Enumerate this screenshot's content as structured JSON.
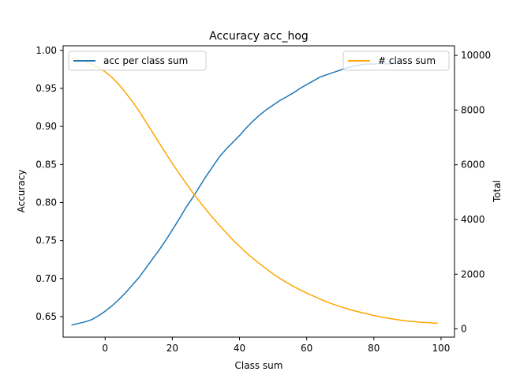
{
  "chart_data": {
    "type": "line",
    "title": "Accuracy acc_hog",
    "xlabel": "Class sum",
    "ylabel": "Accuracy",
    "y2label": "Total",
    "xlim": [
      -12.5,
      104
    ],
    "ylim": [
      0.623,
      1.006
    ],
    "y2lim": [
      -300,
      10350
    ],
    "x_ticks": [
      0,
      20,
      40,
      60,
      80,
      100
    ],
    "y_ticks": [
      0.65,
      0.7,
      0.75,
      0.8,
      0.85,
      0.9,
      0.95,
      1.0
    ],
    "y2_ticks": [
      0,
      2000,
      4000,
      6000,
      8000,
      10000
    ],
    "grid": false,
    "series": [
      {
        "name": "acc per class sum",
        "axis": "left",
        "color": "#1f77b4",
        "legend_position": "upper-left",
        "x": [
          -10,
          -8,
          -6,
          -4,
          -2,
          0,
          2,
          4,
          6,
          8,
          10,
          12,
          14,
          16,
          18,
          20,
          22,
          24,
          26,
          28,
          30,
          32,
          34,
          36,
          38,
          40,
          42,
          44,
          46,
          48,
          50,
          52,
          54,
          56,
          58,
          60,
          62,
          64,
          66,
          68,
          70,
          72,
          74,
          76,
          78,
          80,
          82,
          84,
          86,
          88
        ],
        "y": [
          0.639,
          0.641,
          0.643,
          0.646,
          0.651,
          0.657,
          0.664,
          0.672,
          0.681,
          0.691,
          0.701,
          0.713,
          0.725,
          0.737,
          0.75,
          0.764,
          0.778,
          0.793,
          0.806,
          0.82,
          0.834,
          0.847,
          0.86,
          0.87,
          0.879,
          0.888,
          0.898,
          0.907,
          0.915,
          0.922,
          0.928,
          0.934,
          0.939,
          0.944,
          0.95,
          0.955,
          0.96,
          0.965,
          0.968,
          0.971,
          0.974,
          0.977,
          0.979,
          0.981,
          0.982,
          0.982,
          0.983,
          0.982,
          0.983,
          0.983
        ]
      },
      {
        "name": "# class sum",
        "axis": "right",
        "color": "#ffa500",
        "legend_position": "upper-right",
        "x": [
          -10,
          -8,
          -6,
          -4,
          -2,
          0,
          2,
          4,
          6,
          8,
          10,
          12,
          14,
          16,
          18,
          20,
          22,
          24,
          26,
          28,
          30,
          32,
          34,
          36,
          38,
          40,
          42,
          44,
          46,
          48,
          50,
          52,
          54,
          56,
          58,
          60,
          62,
          64,
          66,
          68,
          70,
          72,
          74,
          76,
          78,
          80,
          82,
          84,
          86,
          88,
          90,
          92,
          94,
          96,
          98,
          99
        ],
        "y": [
          9900,
          9850,
          9780,
          9680,
          9560,
          9400,
          9200,
          8950,
          8650,
          8330,
          7980,
          7600,
          7210,
          6820,
          6430,
          6050,
          5690,
          5340,
          5000,
          4670,
          4370,
          4070,
          3790,
          3520,
          3260,
          3020,
          2790,
          2580,
          2380,
          2190,
          2010,
          1850,
          1700,
          1560,
          1430,
          1310,
          1200,
          1090,
          990,
          900,
          820,
          740,
          670,
          610,
          550,
          490,
          440,
          395,
          355,
          320,
          290,
          265,
          245,
          230,
          215,
          210
        ]
      }
    ]
  }
}
